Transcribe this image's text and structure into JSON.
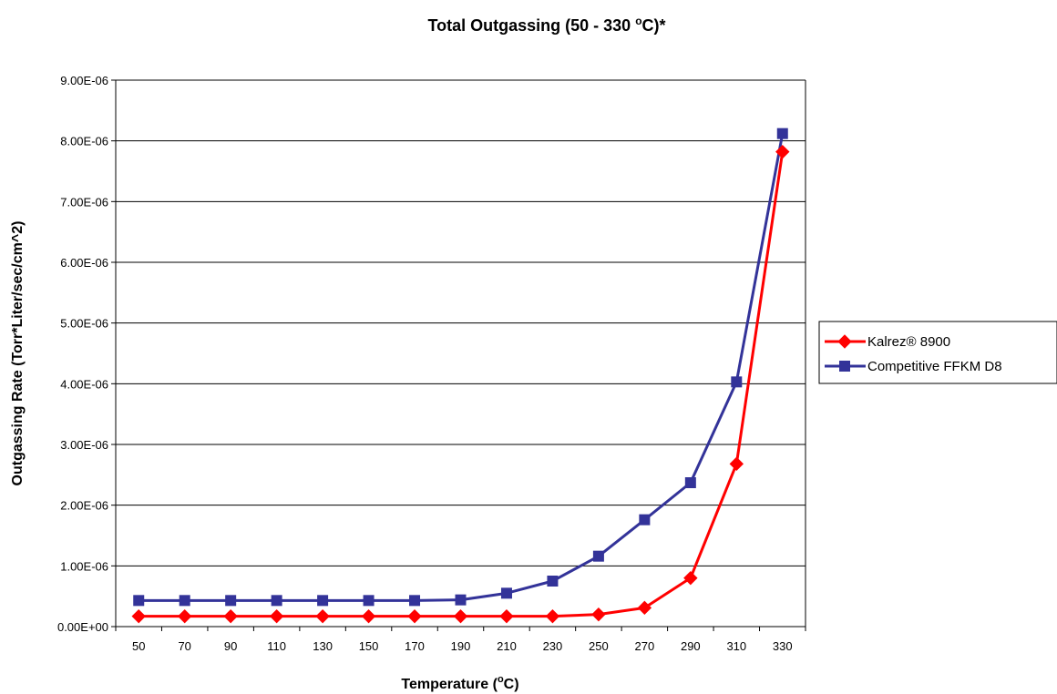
{
  "chart_data": {
    "type": "line",
    "title_main": "Total Outgassing (50 - 330 ",
    "title_sup": "o",
    "title_tail": "C)*",
    "xlabel_main": "Temperature (",
    "xlabel_sup": "o",
    "xlabel_tail": "C)",
    "ylabel": "Outgassing Rate (Torr*Liter/sec/cm^2)",
    "ylim": [
      0,
      9e-06
    ],
    "y_ticks": [
      "0.00E+00",
      "1.00E-06",
      "2.00E-06",
      "3.00E-06",
      "4.00E-06",
      "5.00E-06",
      "6.00E-06",
      "7.00E-06",
      "8.00E-06",
      "9.00E-06"
    ],
    "categories": [
      "50",
      "70",
      "90",
      "110",
      "130",
      "150",
      "170",
      "190",
      "210",
      "230",
      "250",
      "270",
      "290",
      "310",
      "330"
    ],
    "grid": true,
    "legend_position": "right",
    "series": [
      {
        "name": "Kalrez® 8900",
        "color": "#ff0000",
        "marker": "diamond",
        "values": [
          1.7e-07,
          1.7e-07,
          1.7e-07,
          1.7e-07,
          1.7e-07,
          1.7e-07,
          1.7e-07,
          1.7e-07,
          1.7e-07,
          1.7e-07,
          2e-07,
          3.1e-07,
          8e-07,
          2.68e-06,
          7.82e-06
        ]
      },
      {
        "name": "Competitive FFKM D8",
        "color": "#333399",
        "marker": "square",
        "values": [
          4.3e-07,
          4.3e-07,
          4.3e-07,
          4.3e-07,
          4.3e-07,
          4.3e-07,
          4.3e-07,
          4.4e-07,
          5.5e-07,
          7.5e-07,
          1.16e-06,
          1.76e-06,
          2.37e-06,
          4.03e-06,
          8.12e-06
        ]
      }
    ]
  }
}
